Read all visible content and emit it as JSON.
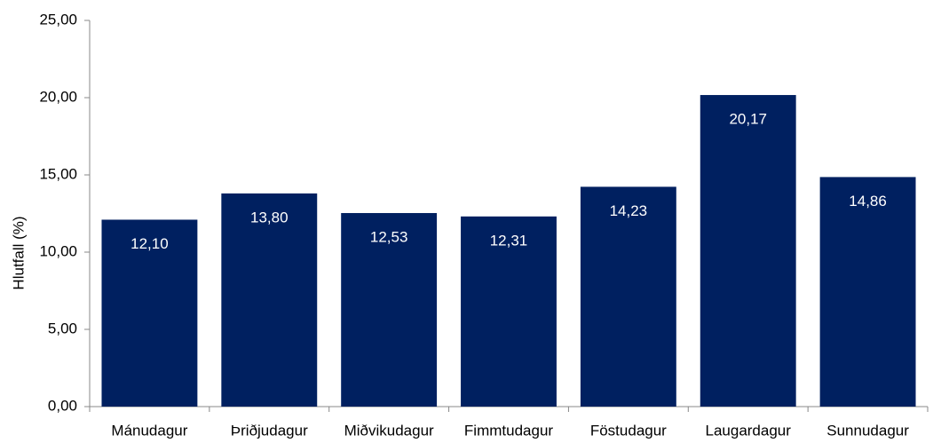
{
  "chart_data": {
    "type": "bar",
    "y_label": "Hlutfall (%)",
    "categories": [
      "Mánudagur",
      "Þriðjudagur",
      "Miðvikudagur",
      "Fimmtudagur",
      "Föstudagur",
      "Laugardagur",
      "Sunnudagur"
    ],
    "values": [
      12.1,
      13.8,
      12.53,
      12.31,
      14.23,
      20.17,
      14.86
    ],
    "value_labels": [
      "12,10",
      "13,80",
      "12,53",
      "12,31",
      "14,23",
      "20,17",
      "14,86"
    ],
    "color": "#002060",
    "ylim": [
      0,
      25
    ],
    "yticks": [
      {
        "value": 0,
        "label": "0,00"
      },
      {
        "value": 5,
        "label": "5,00"
      },
      {
        "value": 10,
        "label": "10,00"
      },
      {
        "value": 15,
        "label": "15,00"
      },
      {
        "value": 20,
        "label": "20,00"
      },
      {
        "value": 25,
        "label": "25,00"
      }
    ],
    "grid": false
  }
}
